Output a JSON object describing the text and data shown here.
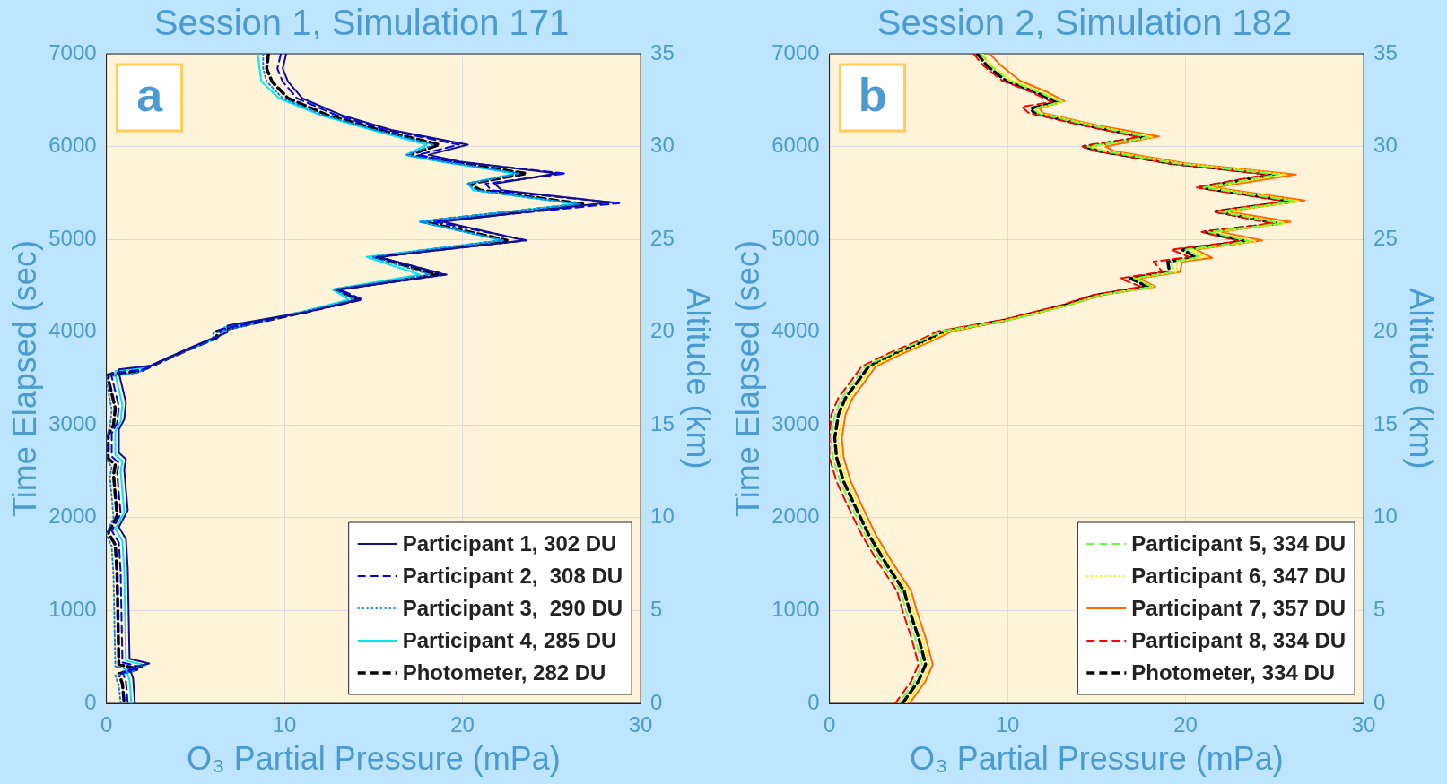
{
  "chart_data": [
    {
      "type": "line",
      "title": "Session 1, Simulation 171",
      "xlabel": "O₃ Partial Pressure (mPa)",
      "ylabel": "Time Elapsed (sec)",
      "y2label": "Altitude (km)",
      "annotations": [
        "a"
      ],
      "xlim": [
        0,
        30
      ],
      "xticks": [
        0,
        10,
        20,
        30
      ],
      "ylim": [
        0,
        7000
      ],
      "yticks": [
        0,
        1000,
        2000,
        3000,
        4000,
        5000,
        6000,
        7000
      ],
      "y2lim": [
        0,
        35
      ],
      "y2ticks": [
        0,
        5,
        10,
        15,
        20,
        25,
        30,
        35
      ],
      "grid": true,
      "legend": "bottom right",
      "series": [
        {
          "name": "Participant 1, 302 DU",
          "color": "#10108c",
          "line_style": "solid",
          "x": [
            10.1,
            9.9,
            10.2,
            11.0,
            13.2,
            16.0,
            20.3,
            18.1,
            19.8,
            25.3,
            21.8,
            22.2,
            28.3,
            18.9,
            23.5,
            15.3,
            19.0,
            13.0,
            14.2,
            11.3,
            6.8,
            6.8,
            5.4,
            4.1,
            2.5,
            0.7,
            0.7,
            1.1,
            1.0,
            0.7,
            0.7,
            1.1,
            1.0,
            1.2,
            0.7,
            1.1,
            1.2,
            1.3,
            2.4,
            1.3,
            1.5,
            1.6
          ],
          "values": [
            7000,
            6840,
            6700,
            6520,
            6340,
            6180,
            6020,
            5910,
            5840,
            5710,
            5600,
            5530,
            5400,
            5190,
            4990,
            4810,
            4620,
            4460,
            4350,
            4220,
            4070,
            4000,
            3890,
            3780,
            3640,
            3600,
            3560,
            3240,
            3060,
            2950,
            2700,
            2630,
            2520,
            2080,
            1900,
            1770,
            1450,
            480,
            430,
            380,
            270,
            0
          ]
        },
        {
          "name": "Participant 2,  308 DU",
          "color": "#0000ff",
          "line_style": "dashed",
          "x": [
            9.8,
            9.6,
            9.9,
            10.7,
            12.9,
            15.7,
            19.8,
            17.5,
            19.5,
            25.8,
            21.3,
            21.6,
            28.8,
            18.4,
            23.6,
            15.2,
            19.1,
            13.1,
            14.4,
            11.3,
            6.4,
            6.4,
            5.0,
            3.7,
            2.1,
            0.3,
            0.3,
            0.7,
            0.6,
            0.3,
            0.3,
            0.7,
            0.6,
            0.8,
            0.3,
            0.7,
            0.8,
            0.9,
            2.0,
            0.9,
            1.1,
            1.2
          ],
          "values": [
            7000,
            6840,
            6700,
            6520,
            6340,
            6180,
            6020,
            5910,
            5840,
            5710,
            5600,
            5530,
            5390,
            5190,
            4990,
            4810,
            4620,
            4460,
            4350,
            4220,
            4030,
            3960,
            3850,
            3740,
            3600,
            3560,
            3520,
            3200,
            3020,
            2910,
            2660,
            2590,
            2480,
            2040,
            1860,
            1730,
            1410,
            440,
            390,
            340,
            230,
            0
          ]
        },
        {
          "name": "Participant 3,  290 DU",
          "color": "#0a7ff0",
          "line_style": "dotted",
          "x": [
            8.8,
            8.8,
            9.0,
            9.9,
            12.2,
            15.1,
            18.4,
            16.9,
            18.9,
            23.2,
            20.3,
            20.8,
            26.6,
            17.6,
            22.3,
            14.9,
            18.2,
            12.8,
            13.9,
            11.1,
            6.0,
            6.0,
            4.6,
            3.3,
            1.7,
            0.0,
            0.0,
            0.3,
            0.2,
            0.0,
            0.0,
            0.3,
            0.2,
            0.4,
            0.0,
            0.3,
            0.4,
            0.5,
            1.6,
            0.5,
            0.7,
            0.8
          ],
          "values": [
            7000,
            6840,
            6700,
            6520,
            6340,
            6180,
            6020,
            5910,
            5840,
            5710,
            5600,
            5530,
            5380,
            5190,
            4990,
            4810,
            4620,
            4460,
            4350,
            4220,
            3990,
            3920,
            3810,
            3700,
            3560,
            3520,
            3480,
            3160,
            2980,
            2870,
            2620,
            2550,
            2440,
            2000,
            1820,
            1690,
            1370,
            400,
            350,
            300,
            190,
            0
          ]
        },
        {
          "name": "Participant 4, 285 DU",
          "color": "#00e8f0",
          "line_style": "solid",
          "x": [
            8.5,
            8.6,
            8.7,
            9.7,
            12.0,
            14.9,
            18.0,
            16.8,
            18.7,
            22.9,
            20.3,
            20.6,
            26.4,
            17.6,
            22.2,
            14.6,
            17.6,
            12.7,
            13.6,
            11.0,
            6.6,
            6.6,
            5.2,
            3.9,
            2.3,
            0.5,
            0.5,
            0.9,
            0.8,
            0.5,
            0.5,
            0.9,
            0.8,
            1.0,
            0.5,
            0.9,
            1.0,
            1.1,
            2.2,
            1.1,
            1.3,
            1.4
          ],
          "values": [
            7000,
            6840,
            6700,
            6520,
            6340,
            6180,
            6020,
            5910,
            5840,
            5710,
            5600,
            5530,
            5380,
            5190,
            4990,
            4810,
            4620,
            4460,
            4350,
            4220,
            4050,
            3980,
            3870,
            3760,
            3620,
            3580,
            3540,
            3220,
            3040,
            2930,
            2680,
            2610,
            2500,
            2060,
            1880,
            1750,
            1430,
            460,
            410,
            360,
            250,
            0
          ]
        },
        {
          "name": "Photometer, 282 DU",
          "color": "#000000",
          "line_style": "dashed",
          "x": [
            9.1,
            9.0,
            9.3,
            10.2,
            12.4,
            15.3,
            18.7,
            17.0,
            19.1,
            23.6,
            20.4,
            21.0,
            26.8,
            17.8,
            22.5,
            15.1,
            18.6,
            12.9,
            14.1,
            11.2,
            6.2,
            6.2,
            4.8,
            3.5,
            1.9,
            0.1,
            0.1,
            0.5,
            0.4,
            0.1,
            0.1,
            0.5,
            0.4,
            0.6,
            0.1,
            0.5,
            0.6,
            0.7,
            1.8,
            0.7,
            0.9,
            1.0
          ],
          "values": [
            7000,
            6840,
            6700,
            6520,
            6340,
            6180,
            6020,
            5910,
            5840,
            5710,
            5600,
            5530,
            5380,
            5190,
            4990,
            4810,
            4620,
            4460,
            4350,
            4220,
            4010,
            3940,
            3830,
            3720,
            3580,
            3540,
            3500,
            3180,
            3000,
            2890,
            2640,
            2570,
            2460,
            2020,
            1840,
            1710,
            1390,
            420,
            370,
            320,
            210,
            0
          ]
        }
      ]
    },
    {
      "type": "line",
      "title": "Session 2, Simulation 182",
      "xlabel": "O₃ Partial Pressure (mPa)",
      "ylabel": "Time Elapsed (sec)",
      "y2label": "Altitude (km)",
      "annotations": [
        "b"
      ],
      "xlim": [
        0,
        30
      ],
      "xticks": [
        0,
        10,
        20,
        30
      ],
      "ylim": [
        0,
        7000
      ],
      "yticks": [
        0,
        1000,
        2000,
        3000,
        4000,
        5000,
        6000,
        7000
      ],
      "y2lim": [
        0,
        35
      ],
      "y2ticks": [
        0,
        5,
        10,
        15,
        20,
        25,
        30,
        35
      ],
      "grid": true,
      "legend": "bottom right",
      "series": [
        {
          "name": "Participant 5, 334 DU",
          "color": "#66ff44",
          "line_style": "dashed",
          "x": [
            8.5,
            9.0,
            10.1,
            11.7,
            13.0,
            11.5,
            11.7,
            14.6,
            17.9,
            14.5,
            15.4,
            19.4,
            25.2,
            21.0,
            26.2,
            21.9,
            25.4,
            21.3,
            23.6,
            20.0,
            20.8,
            19.2,
            19.3,
            17.1,
            18.1,
            15.2,
            13.4,
            10.1,
            6.3,
            5.1,
            3.5,
            2.0,
            1.4,
            0.7,
            0.3,
            0.1,
            0.2,
            0.6,
            1.2,
            2.0,
            3.0,
            4.0,
            4.3,
            4.8,
            5.2,
            4.8,
            3.9
          ],
          "values": [
            7000,
            6880,
            6710,
            6590,
            6480,
            6410,
            6360,
            6230,
            6100,
            6000,
            5950,
            5820,
            5700,
            5560,
            5410,
            5300,
            5170,
            5080,
            4980,
            4890,
            4810,
            4760,
            4650,
            4580,
            4490,
            4400,
            4290,
            4130,
            4010,
            3900,
            3770,
            3630,
            3470,
            3290,
            3110,
            2860,
            2650,
            2390,
            2140,
            1820,
            1500,
            1210,
            1000,
            710,
            420,
            240,
            0
          ]
        },
        {
          "name": "Participant 6, 347 DU",
          "color": "#ffee00",
          "line_style": "dotted",
          "x": [
            8.6,
            9.1,
            10.3,
            11.9,
            13.1,
            11.6,
            11.8,
            14.8,
            18.1,
            14.7,
            15.6,
            19.7,
            25.6,
            21.3,
            26.4,
            22.1,
            25.6,
            21.6,
            23.9,
            20.3,
            21.1,
            19.5,
            19.5,
            17.2,
            18.2,
            15.2,
            13.4,
            10.0,
            6.7,
            5.5,
            3.9,
            2.4,
            1.8,
            1.1,
            0.7,
            0.5,
            0.6,
            1.0,
            1.6,
            2.4,
            3.4,
            4.4,
            4.7,
            5.2,
            5.6,
            5.2,
            4.3
          ],
          "values": [
            7000,
            6880,
            6710,
            6590,
            6480,
            6410,
            6360,
            6230,
            6100,
            6000,
            5950,
            5820,
            5700,
            5560,
            5410,
            5300,
            5170,
            5080,
            4980,
            4890,
            4810,
            4760,
            4650,
            4580,
            4490,
            4400,
            4290,
            4130,
            4010,
            3900,
            3770,
            3630,
            3470,
            3290,
            3110,
            2860,
            2650,
            2390,
            2140,
            1820,
            1500,
            1210,
            1000,
            710,
            420,
            240,
            0
          ]
        },
        {
          "name": "Participant 7, 357 DU",
          "color": "#ff6a00",
          "line_style": "solid",
          "x": [
            9.0,
            9.6,
            10.7,
            12.2,
            13.2,
            11.8,
            12.0,
            15.0,
            18.5,
            15.5,
            16.0,
            20.0,
            26.2,
            21.6,
            26.7,
            22.3,
            25.9,
            22.0,
            24.3,
            20.6,
            21.5,
            19.8,
            19.7,
            17.4,
            18.3,
            15.3,
            13.4,
            10.0,
            6.9,
            5.7,
            4.1,
            2.6,
            2.0,
            1.3,
            0.9,
            0.7,
            0.8,
            1.2,
            1.8,
            2.6,
            3.6,
            4.6,
            4.9,
            5.4,
            5.8,
            5.4,
            4.5
          ],
          "values": [
            7000,
            6880,
            6710,
            6590,
            6490,
            6410,
            6360,
            6230,
            6110,
            6000,
            5950,
            5820,
            5700,
            5560,
            5420,
            5300,
            5190,
            5080,
            4990,
            4890,
            4800,
            4760,
            4650,
            4580,
            4490,
            4400,
            4290,
            4130,
            4010,
            3900,
            3770,
            3630,
            3470,
            3290,
            3110,
            2860,
            2650,
            2390,
            2140,
            1820,
            1500,
            1210,
            1000,
            710,
            420,
            240,
            0
          ]
        },
        {
          "name": "Participant 8, 334 DU",
          "color": "#ff0000",
          "line_style": "dashed",
          "x": [
            8.1,
            8.6,
            9.7,
            11.3,
            12.5,
            10.8,
            11.2,
            14.2,
            17.4,
            14.2,
            15.0,
            19.0,
            24.6,
            20.6,
            25.6,
            21.6,
            24.9,
            20.9,
            23.0,
            19.2,
            20.2,
            18.2,
            18.7,
            16.3,
            17.5,
            14.8,
            13.0,
            9.7,
            6.1,
            4.9,
            3.3,
            1.8,
            1.2,
            0.5,
            0.1,
            0.0,
            0.0,
            0.4,
            1.0,
            1.8,
            2.8,
            3.8,
            4.1,
            4.6,
            5.0,
            4.6,
            3.7
          ],
          "values": [
            7000,
            6880,
            6710,
            6590,
            6480,
            6430,
            6360,
            6230,
            6100,
            6000,
            5950,
            5820,
            5700,
            5560,
            5410,
            5300,
            5170,
            5080,
            4980,
            4890,
            4810,
            4760,
            4650,
            4580,
            4490,
            4400,
            4290,
            4130,
            4010,
            3900,
            3770,
            3630,
            3470,
            3290,
            3110,
            2860,
            2650,
            2390,
            2140,
            1820,
            1500,
            1210,
            1000,
            710,
            420,
            240,
            0
          ]
        },
        {
          "name": "Photometer, 334 DU",
          "color": "#000000",
          "line_style": "dashed",
          "x": [
            8.3,
            8.8,
            9.9,
            11.5,
            12.8,
            11.3,
            11.5,
            14.4,
            17.7,
            14.3,
            15.2,
            19.2,
            25.0,
            20.8,
            26.0,
            21.7,
            25.2,
            21.1,
            23.4,
            19.8,
            20.6,
            19.0,
            19.1,
            16.9,
            17.9,
            15.0,
            13.2,
            9.9,
            6.5,
            5.3,
            3.7,
            2.2,
            1.6,
            0.9,
            0.5,
            0.3,
            0.4,
            0.8,
            1.4,
            2.2,
            3.2,
            4.2,
            4.5,
            5.0,
            5.4,
            5.0,
            4.1
          ],
          "values": [
            7000,
            6880,
            6710,
            6590,
            6480,
            6410,
            6360,
            6230,
            6100,
            6000,
            5950,
            5820,
            5700,
            5560,
            5410,
            5300,
            5170,
            5080,
            4980,
            4890,
            4810,
            4760,
            4650,
            4580,
            4490,
            4400,
            4290,
            4130,
            4010,
            3900,
            3770,
            3630,
            3470,
            3290,
            3110,
            2860,
            2650,
            2390,
            2140,
            1820,
            1500,
            1210,
            1000,
            710,
            420,
            240,
            0
          ]
        }
      ]
    }
  ]
}
